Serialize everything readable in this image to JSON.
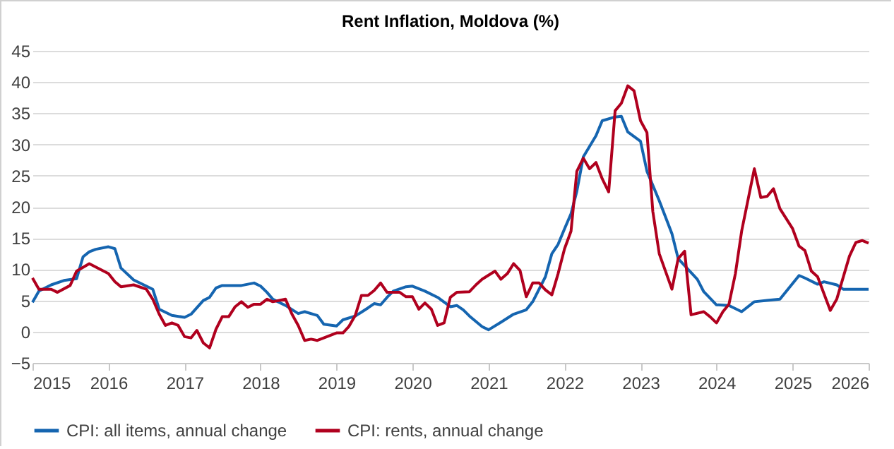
{
  "chart_data": {
    "type": "line",
    "title": "Rent Inflation, Moldova (%)",
    "xlim": [
      "2015-01",
      "2026-01"
    ],
    "xticks": [
      "2015",
      "2016",
      "2017",
      "2018",
      "2019",
      "2020",
      "2021",
      "2022",
      "2023",
      "2024",
      "2025",
      "2026"
    ],
    "ylim": [
      -5,
      45
    ],
    "yticks": [
      -5,
      0,
      5,
      10,
      15,
      20,
      25,
      30,
      35,
      40,
      45
    ],
    "grid": "y",
    "legend": "bottom",
    "marker": "none",
    "line_style": "solid",
    "series": [
      {
        "name": "CPI: all items, annual change",
        "color": "#1565b0",
        "x": [
          "2015-01",
          "2015-02",
          "2015-04",
          "2015-06",
          "2015-08",
          "2015-09",
          "2015-10",
          "2015-11",
          "2016-01",
          "2016-02",
          "2016-03",
          "2016-05",
          "2016-07",
          "2016-08",
          "2016-09",
          "2016-11",
          "2017-01",
          "2017-02",
          "2017-04",
          "2017-05",
          "2017-06",
          "2017-07",
          "2017-10",
          "2017-12",
          "2018-01",
          "2018-02",
          "2018-03",
          "2018-05",
          "2018-07",
          "2018-08",
          "2018-10",
          "2018-11",
          "2019-01",
          "2019-02",
          "2019-04",
          "2019-06",
          "2019-07",
          "2019-08",
          "2019-09",
          "2019-10",
          "2019-12",
          "2020-01",
          "2020-03",
          "2020-05",
          "2020-07",
          "2020-08",
          "2020-09",
          "2020-10",
          "2020-12",
          "2021-01",
          "2021-03",
          "2021-05",
          "2021-07",
          "2021-08",
          "2021-10",
          "2021-11",
          "2021-12",
          "2022-01",
          "2022-02",
          "2022-03",
          "2022-04",
          "2022-06",
          "2022-07",
          "2022-09",
          "2022-10",
          "2022-11",
          "2023-01",
          "2023-02",
          "2023-04",
          "2023-06",
          "2023-07",
          "2023-10",
          "2023-11",
          "2024-01",
          "2024-03",
          "2024-05",
          "2024-07",
          "2024-09",
          "2024-11",
          "2025-02",
          "2025-03",
          "2025-05",
          "2025-06",
          "2025-08",
          "2025-09",
          "2026-01"
        ],
        "values": [
          4.7,
          6.5,
          7.5,
          8.2,
          8.5,
          12,
          12.8,
          13.2,
          13.6,
          13.3,
          10.2,
          8.3,
          7.3,
          6.8,
          3.6,
          2.6,
          2.3,
          2.8,
          5,
          5.5,
          7,
          7.4,
          7.4,
          7.8,
          7.3,
          6.3,
          5.2,
          4.2,
          2.9,
          3.2,
          2.6,
          1.2,
          0.9,
          1.9,
          2.5,
          3.8,
          4.5,
          4.3,
          5.5,
          6.5,
          7.2,
          7.3,
          6.5,
          5.5,
          4,
          4.2,
          3.5,
          2.5,
          0.8,
          0.3,
          1.5,
          2.8,
          3.5,
          4.8,
          8.8,
          12.5,
          14,
          16.5,
          18.9,
          22.5,
          28,
          31.4,
          33.8,
          34.4,
          34.5,
          32,
          30.5,
          25.7,
          21,
          15.7,
          11.7,
          8.4,
          6.4,
          4.3,
          4.2,
          3.2,
          4.8,
          5,
          5.2,
          9,
          8.6,
          7.6,
          8,
          7.5,
          6.8,
          6.8
        ]
      },
      {
        "name": "CPI: rents, annual change",
        "color": "#b0001e",
        "x": [
          "2015-01",
          "2015-02",
          "2015-04",
          "2015-05",
          "2015-07",
          "2015-08",
          "2015-10",
          "2016-01",
          "2016-02",
          "2016-03",
          "2016-05",
          "2016-07",
          "2016-08",
          "2016-09",
          "2016-10",
          "2016-11",
          "2016-12",
          "2017-01",
          "2017-02",
          "2017-03",
          "2017-04",
          "2017-05",
          "2017-06",
          "2017-07",
          "2017-08",
          "2017-09",
          "2017-10",
          "2017-11",
          "2017-12",
          "2018-01",
          "2018-02",
          "2018-03",
          "2018-05",
          "2018-06",
          "2018-07",
          "2018-08",
          "2018-09",
          "2018-10",
          "2018-11",
          "2019-01",
          "2019-02",
          "2019-03",
          "2019-04",
          "2019-05",
          "2019-06",
          "2019-07",
          "2019-08",
          "2019-09",
          "2019-11",
          "2019-12",
          "2020-01",
          "2020-02",
          "2020-03",
          "2020-04",
          "2020-05",
          "2020-06",
          "2020-07",
          "2020-08",
          "2020-10",
          "2020-11",
          "2020-12",
          "2021-02",
          "2021-03",
          "2021-04",
          "2021-05",
          "2021-06",
          "2021-07",
          "2021-08",
          "2021-09",
          "2021-10",
          "2021-11",
          "2021-12",
          "2022-01",
          "2022-02",
          "2022-03",
          "2022-04",
          "2022-05",
          "2022-06",
          "2022-07",
          "2022-08",
          "2022-09",
          "2022-10",
          "2022-11",
          "2022-12",
          "2023-01",
          "2023-02",
          "2023-03",
          "2023-04",
          "2023-06",
          "2023-07",
          "2023-08",
          "2023-09",
          "2023-11",
          "2023-12",
          "2024-01",
          "2024-02",
          "2024-03",
          "2024-04",
          "2024-05",
          "2024-07",
          "2024-08",
          "2024-09",
          "2024-10",
          "2024-11",
          "2025-01",
          "2025-02",
          "2025-03",
          "2025-04",
          "2025-05",
          "2025-07",
          "2025-08",
          "2025-10",
          "2025-11",
          "2025-12",
          "2026-01"
        ],
        "values": [
          8.6,
          6.8,
          6.8,
          6.3,
          7.4,
          9.7,
          10.9,
          9.3,
          8,
          7.2,
          7.5,
          6.8,
          5.2,
          2.8,
          1,
          1.4,
          1,
          -0.8,
          -1,
          0.2,
          -1.8,
          -2.6,
          0.4,
          2.4,
          2.4,
          4,
          4.8,
          3.9,
          4.4,
          4.4,
          5.2,
          4.8,
          5.2,
          2.8,
          1,
          -1.4,
          -1.2,
          -1.4,
          -1,
          -0.2,
          -0.2,
          0.8,
          2.6,
          5.8,
          5.8,
          6.6,
          7.8,
          6.3,
          6.3,
          5.6,
          5.6,
          3.6,
          4.6,
          3.6,
          1,
          1.4,
          5.5,
          6.3,
          6.4,
          7.5,
          8.4,
          9.7,
          8.4,
          9.3,
          10.9,
          9.8,
          5.6,
          7.8,
          7.8,
          6.7,
          5.9,
          9.3,
          13.3,
          16.1,
          25.7,
          27.8,
          26.1,
          27.1,
          24.5,
          22.4,
          35.4,
          36.6,
          39.4,
          38.6,
          33.8,
          31.9,
          19.3,
          12.5,
          6.8,
          11.7,
          12.9,
          2.7,
          3.2,
          2.4,
          1.4,
          3.2,
          4.4,
          9.3,
          16.1,
          26.1,
          21.5,
          21.7,
          22.9,
          19.7,
          16.5,
          13.7,
          13,
          9.7,
          8.8,
          3.4,
          5.2,
          12.1,
          14.3,
          14.6,
          14.2
        ]
      }
    ]
  }
}
